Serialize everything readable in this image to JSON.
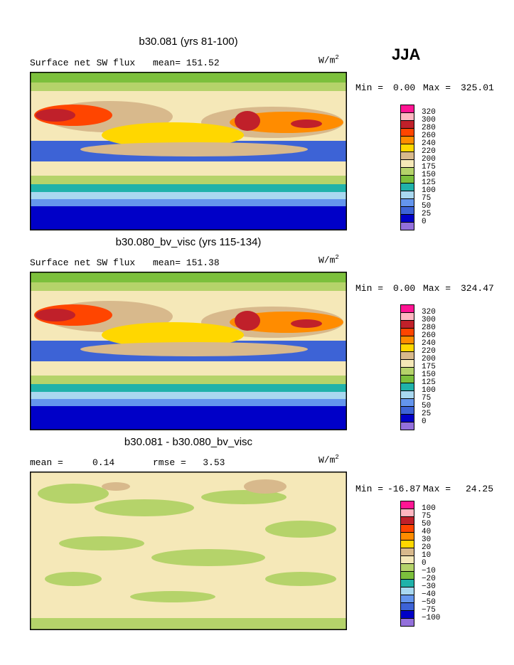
{
  "season": "JJA",
  "panels": [
    {
      "title": "b30.081 (yrs 81-100)",
      "left_text": "Surface net SW flux",
      "stat1": "mean= 151.52",
      "stat2": "",
      "units": "W/m",
      "units_sup": "2",
      "min_label": "Min =",
      "min_value": "0.00",
      "max_label": "Max =",
      "max_value": "325.01",
      "colorbar_labels": [
        "320",
        "300",
        "280",
        "260",
        "240",
        "220",
        "200",
        "175",
        "150",
        "125",
        "100",
        "75",
        "50",
        "25",
        "0"
      ],
      "colors": [
        "#ff1493",
        "#ffb6c1",
        "#c0202a",
        "#ff4500",
        "#ff8c00",
        "#ffd700",
        "#d8b98c",
        "#f5e8b8",
        "#b5d36a",
        "#7cc03c",
        "#20b2aa",
        "#a9d8f0",
        "#6495ed",
        "#3d63d6",
        "#0000c8",
        "#9370db"
      ]
    },
    {
      "title": "b30.080_bv_visc (yrs 115-134)",
      "left_text": "Surface net SW flux",
      "stat1": "mean= 151.38",
      "stat2": "",
      "units": "W/m",
      "units_sup": "2",
      "min_label": "Min =",
      "min_value": "0.00",
      "max_label": "Max =",
      "max_value": "324.47",
      "colorbar_labels": [
        "320",
        "300",
        "280",
        "260",
        "240",
        "220",
        "200",
        "175",
        "150",
        "125",
        "100",
        "75",
        "50",
        "25",
        "0"
      ],
      "colors": [
        "#ff1493",
        "#ffb6c1",
        "#c0202a",
        "#ff4500",
        "#ff8c00",
        "#ffd700",
        "#d8b98c",
        "#f5e8b8",
        "#b5d36a",
        "#7cc03c",
        "#20b2aa",
        "#a9d8f0",
        "#6495ed",
        "#3d63d6",
        "#0000c8",
        "#9370db"
      ]
    },
    {
      "title": "b30.081 - b30.080_bv_visc",
      "left_text": "mean =",
      "stat1": "0.14",
      "stat2": "rmse =   3.53",
      "units": "W/m",
      "units_sup": "2",
      "min_label": "Min =",
      "min_value": "-16.87",
      "max_label": "Max =",
      "max_value": "24.25",
      "colorbar_labels": [
        "100",
        "75",
        "50",
        "40",
        "30",
        "20",
        "10",
        "0",
        "−10",
        "−20",
        "−30",
        "−40",
        "−50",
        "−75",
        "−100"
      ],
      "colors": [
        "#ff1493",
        "#ffb6c1",
        "#c0202a",
        "#ff4500",
        "#ff8c00",
        "#ffd700",
        "#d8b98c",
        "#f5e8b8",
        "#b5d36a",
        "#7cc03c",
        "#20b2aa",
        "#a9d8f0",
        "#6495ed",
        "#3d63d6",
        "#0000c8",
        "#9370db"
      ]
    }
  ]
}
